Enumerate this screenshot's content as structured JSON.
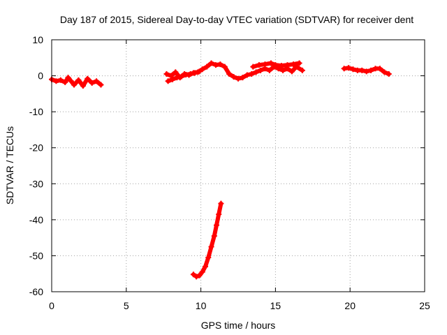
{
  "chart_data": {
    "type": "scatter",
    "title": "Day 187 of 2015, Sidereal Day-to-day VTEC variation (SDTVAR) for receiver dent",
    "xlabel": "GPS time / hours",
    "ylabel": "SDTVAR / TECUs",
    "xlim": [
      0,
      25
    ],
    "ylim": [
      -60,
      10
    ],
    "xticks": [
      "0",
      "5",
      "10",
      "15",
      "20",
      "25"
    ],
    "yticks": [
      "10",
      "0",
      "-10",
      "-20",
      "-30",
      "-40",
      "-50",
      "-60"
    ],
    "grid": true,
    "marker": "plus",
    "color": "#ff0000",
    "series": [
      {
        "x": [
          0.0,
          0.3,
          0.6,
          0.9,
          1.1,
          1.3,
          1.5,
          1.8,
          2.1,
          2.4,
          2.7,
          3.0,
          3.3
        ],
        "y": [
          -1.0,
          -1.5,
          -1.2,
          -1.8,
          -0.5,
          -1.5,
          -2.5,
          -1.2,
          -2.8,
          -0.8,
          -2.0,
          -1.5,
          -2.5
        ]
      },
      {
        "x": [
          7.7,
          8.0,
          8.3,
          8.6,
          8.9,
          9.2,
          9.5,
          9.8,
          10.1,
          10.4,
          10.7,
          11.0,
          11.3,
          11.6,
          11.9,
          12.2,
          12.5,
          12.8,
          13.1,
          13.4,
          13.7,
          14.0,
          14.3,
          14.6,
          14.9,
          15.2,
          15.5,
          15.8,
          16.1,
          16.4,
          16.8
        ],
        "y": [
          0.5,
          0.0,
          1.0,
          -0.5,
          0.5,
          0.2,
          0.8,
          1.0,
          1.8,
          2.5,
          3.5,
          3.0,
          3.2,
          2.5,
          0.5,
          -0.3,
          -0.8,
          -0.5,
          0.2,
          0.5,
          1.0,
          1.5,
          2.0,
          1.5,
          2.5,
          2.0,
          1.5,
          2.0,
          1.2,
          2.5,
          1.5
        ]
      },
      {
        "x": [
          13.5,
          13.9,
          14.3,
          14.7,
          15.0,
          15.4,
          15.8,
          16.2,
          16.6
        ],
        "y": [
          2.5,
          3.0,
          3.2,
          3.5,
          3.0,
          2.8,
          3.0,
          3.2,
          3.5
        ]
      },
      {
        "x": [
          7.8,
          8.1,
          8.4,
          8.7,
          9.0,
          9.3,
          9.6,
          9.9
        ],
        "y": [
          -1.5,
          -1.0,
          -0.5,
          -0.2,
          0.3,
          0.5,
          0.8,
          1.2
        ]
      },
      {
        "x": [
          19.6,
          19.9,
          20.2,
          20.5,
          20.8,
          21.1,
          21.4,
          21.7,
          22.0,
          22.3,
          22.6
        ],
        "y": [
          2.0,
          2.2,
          1.8,
          1.5,
          1.5,
          1.2,
          1.5,
          2.0,
          2.0,
          1.0,
          0.5
        ]
      },
      {
        "x": [
          9.5,
          9.7,
          9.9,
          10.1,
          10.3,
          10.5,
          10.7,
          10.9,
          11.05,
          11.2,
          11.35
        ],
        "y": [
          -55.2,
          -55.8,
          -55.5,
          -54.5,
          -53.0,
          -50.5,
          -47.5,
          -44.5,
          -41.5,
          -38.5,
          -35.5
        ]
      }
    ]
  }
}
